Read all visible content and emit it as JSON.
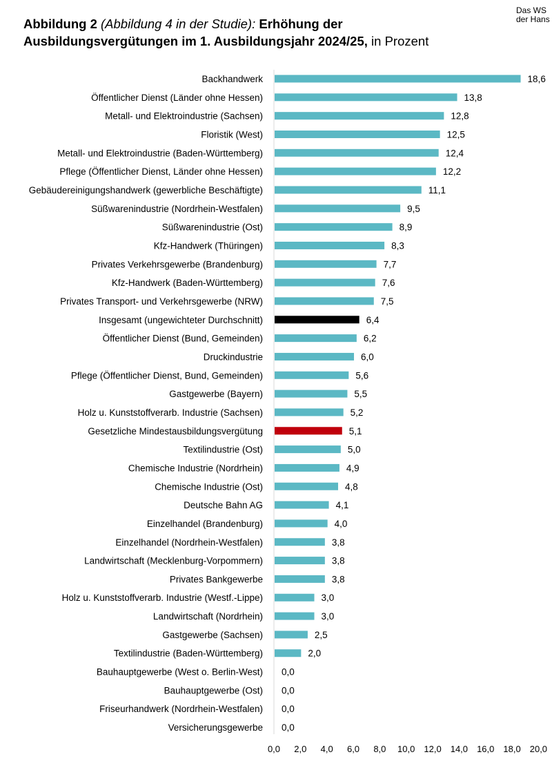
{
  "header": {
    "title_part1": "Abbildung 2",
    "title_part2": " (Abbildung 4 in der Studie):",
    "title_part3": " Erhöhung der Ausbildungsvergütungen im 1. Ausbildungsjahr 2024/25,",
    "title_part4": " in Prozent",
    "corner_line1": "Das WS",
    "corner_line2": "der Hans"
  },
  "colors": {
    "default_bar": "#5bb8c4",
    "average_bar": "#000000",
    "minimum_wage_bar": "#c0000b"
  },
  "chart_data": {
    "type": "bar",
    "orientation": "horizontal",
    "title": "",
    "xlabel": "",
    "ylabel": "",
    "xlim": [
      0,
      20
    ],
    "x_ticks": [
      "0,0",
      "2,0",
      "4,0",
      "6,0",
      "8,0",
      "10,0",
      "12,0",
      "14,0",
      "16,0",
      "18,0",
      "20,0"
    ],
    "grid": false,
    "categories": [
      "Backhandwerk",
      "Öffentlicher Dienst (Länder ohne Hessen)",
      "Metall- und Elektroindustrie (Sachsen)",
      "Floristik (West)",
      "Metall- und Elektroindustrie (Baden-Württemberg)",
      "Pflege (Öffentlicher Dienst, Länder ohne Hessen)",
      "Gebäudereinigungshandwerk (gewerbliche Beschäftigte)",
      "Süßwarenindustrie (Nordrhein-Westfalen)",
      "Süßwarenindustrie (Ost)",
      "Kfz-Handwerk (Thüringen)",
      "Privates Verkehrsgewerbe (Brandenburg)",
      "Kfz-Handwerk (Baden-Württemberg)",
      "Privates Transport- und Verkehrsgewerbe (NRW)",
      "Insgesamt (ungewichteter Durchschnitt)",
      "Öffentlicher Dienst (Bund, Gemeinden)",
      "Druckindustrie",
      "Pflege (Öffentlicher Dienst, Bund, Gemeinden)",
      "Gastgewerbe (Bayern)",
      "Holz u. Kunststoffverarb. Industrie (Sachsen)",
      "Gesetzliche Mindestausbildungsvergütung",
      "Textilindustrie (Ost)",
      "Chemische Industrie (Nordrhein)",
      "Chemische Industrie (Ost)",
      "Deutsche Bahn AG",
      "Einzelhandel (Brandenburg)",
      "Einzelhandel (Nordrhein-Westfalen)",
      "Landwirtschaft (Mecklenburg-Vorpommern)",
      "Privates Bankgewerbe",
      "Holz u. Kunststoffverarb. Industrie (Westf.-Lippe)",
      "Landwirtschaft (Nordrhein)",
      "Gastgewerbe (Sachsen)",
      "Textilindustrie (Baden-Württemberg)",
      "Bauhauptgewerbe (West o. Berlin-West)",
      "Bauhauptgewerbe (Ost)",
      "Friseurhandwerk (Nordrhein-Westfalen)",
      "Versicherungsgewerbe"
    ],
    "values": [
      18.6,
      13.8,
      12.8,
      12.5,
      12.4,
      12.2,
      11.1,
      9.5,
      8.9,
      8.3,
      7.7,
      7.6,
      7.5,
      6.4,
      6.2,
      6.0,
      5.6,
      5.5,
      5.2,
      5.1,
      5.0,
      4.9,
      4.8,
      4.1,
      4.0,
      3.8,
      3.8,
      3.8,
      3.0,
      3.0,
      2.5,
      2.0,
      0.0,
      0.0,
      0.0,
      0.0
    ],
    "value_labels": [
      "18,6",
      "13,8",
      "12,8",
      "12,5",
      "12,4",
      "12,2",
      "11,1",
      "9,5",
      "8,9",
      "8,3",
      "7,7",
      "7,6",
      "7,5",
      "6,4",
      "6,2",
      "6,0",
      "5,6",
      "5,5",
      "5,2",
      "5,1",
      "5,0",
      "4,9",
      "4,8",
      "4,1",
      "4,0",
      "3,8",
      "3,8",
      "3,8",
      "3,0",
      "3,0",
      "2,5",
      "2,0",
      "0,0",
      "0,0",
      "0,0",
      "0,0"
    ],
    "highlight": {
      "average": "Insgesamt (ungewichteter Durchschnitt)",
      "minimum_wage": "Gesetzliche Mindestausbildungsvergütung"
    }
  }
}
